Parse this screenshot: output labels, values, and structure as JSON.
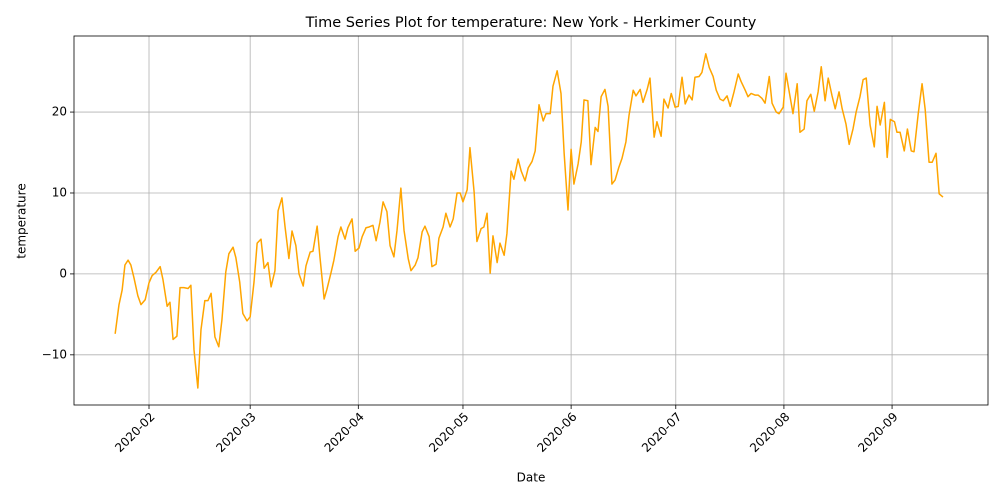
{
  "chart_data": {
    "type": "line",
    "title": "Time Series Plot for temperature: New York - Herkimer County",
    "xlabel": "Date",
    "ylabel": "temperature",
    "color": "#ffa500",
    "grid": true,
    "xlim": [
      -21.5,
      240.5
    ],
    "ylim": [
      -16.2,
      29.4
    ],
    "xticks": [
      {
        "value": 0,
        "label": "2020-02"
      },
      {
        "value": 29,
        "label": "2020-03"
      },
      {
        "value": 60,
        "label": "2020-04"
      },
      {
        "value": 90,
        "label": "2020-05"
      },
      {
        "value": 121,
        "label": "2020-06"
      },
      {
        "value": 151,
        "label": "2020-07"
      },
      {
        "value": 182,
        "label": "2020-08"
      },
      {
        "value": 213,
        "label": "2020-09"
      }
    ],
    "yticks": [
      {
        "value": -10,
        "label": "−10"
      },
      0,
      10,
      20
    ],
    "x": [
      -9.7,
      -8.6,
      -7.7,
      -6.9,
      -6,
      -5.2,
      -4.3,
      -3.2,
      -2.3,
      -1.1,
      0,
      0.9,
      2,
      3.2,
      4,
      5.2,
      6,
      6.9,
      8,
      8.9,
      10,
      11.2,
      12,
      12.9,
      14,
      14.9,
      16,
      16.9,
      17.8,
      18.9,
      20,
      20.9,
      22,
      22.9,
      24.1,
      24.9,
      26,
      26.9,
      28.1,
      29,
      30.1,
      31,
      32.1,
      33,
      34.1,
      35,
      36.1,
      37,
      38.1,
      39,
      40.1,
      41,
      42.1,
      43,
      44.2,
      45,
      46.2,
      47,
      48.2,
      49,
      50.2,
      51,
      52.2,
      53,
      54.2,
      55,
      56.2,
      57,
      58.2,
      59.1,
      60.2,
      61.1,
      62.2,
      63.1,
      64.2,
      65.1,
      66.2,
      67.1,
      68.2,
      69.1,
      70.2,
      71.1,
      72.2,
      73.1,
      74.3,
      75.1,
      76.3,
      77.1,
      78.3,
      79.1,
      80.3,
      81.1,
      82.3,
      83.1,
      84.3,
      85.1,
      86.3,
      87.2,
      88.3,
      89.2,
      90,
      91.2,
      92,
      93.2,
      94,
      95.2,
      96,
      96.9,
      97.8,
      98.6,
      99.8,
      100.6,
      101.8,
      102.6,
      103.8,
      104.6,
      105.8,
      106.7,
      107.8,
      108.7,
      109.8,
      110.7,
      111.8,
      113,
      113.8,
      115,
      115.8,
      117,
      118.1,
      119,
      120.1,
      121,
      121.8,
      123,
      123.9,
      124.7,
      125.8,
      126.7,
      127.9,
      128.7,
      129.6,
      130.7,
      131.6,
      132.7,
      133.6,
      134.7,
      135.6,
      136.7,
      137.6,
      138.8,
      139.6,
      140.8,
      141.6,
      142.8,
      143.6,
      144.8,
      145.6,
      146.8,
      147.6,
      148.8,
      149.7,
      150.8,
      151.7,
      152.8,
      153.7,
      154.8,
      155.7,
      156.5,
      157.7,
      158.5,
      159.6,
      160.6,
      161.7,
      162.6,
      163.7,
      164.6,
      165.7,
      166.6,
      167.7,
      168.9,
      169.7,
      170.9,
      171.7,
      172.6,
      173.7,
      174.6,
      175.7,
      176.6,
      177.8,
      178.6,
      179.8,
      180.6,
      181.8,
      182.6,
      183.8,
      184.6,
      185.8,
      186.6,
      187.8,
      188.6,
      189.7,
      190.7,
      191.8,
      192.7,
      193.8,
      194.7,
      195.8,
      196.7,
      197.8,
      198.7,
      199.8,
      200.7,
      201.8,
      202.7,
      203.8,
      204.7,
      205.6,
      206.7,
      207.9,
      208.7,
      209.6,
      210.8,
      211.6,
      212.5,
      213.7,
      214.4,
      215.3,
      216.5,
      217.4,
      218.5,
      219.3,
      220.5,
      221.6,
      222.5,
      223.6,
      224.5,
      225.6,
      226.5,
      227.6
    ],
    "values": [
      -7.4,
      -3.8,
      -2,
      1.1,
      1.7,
      1.1,
      -0.5,
      -2.7,
      -3.8,
      -3.2,
      -1.1,
      -0.2,
      0.2,
      0.9,
      -0.7,
      -4,
      -3.5,
      -8.1,
      -7.7,
      -1.7,
      -1.7,
      -1.8,
      -1.4,
      -9.4,
      -14.1,
      -6.9,
      -3.3,
      -3.3,
      -2.4,
      -7.8,
      -9,
      -5.7,
      0.2,
      2.5,
      3.3,
      2,
      -1,
      -4.9,
      -5.8,
      -5.3,
      -1,
      3.8,
      4.3,
      0.7,
      1.4,
      -1.6,
      0.4,
      7.8,
      9.4,
      5.8,
      1.9,
      5.3,
      3.5,
      0,
      -1.5,
      1,
      2.7,
      2.8,
      5.9,
      2.1,
      -3.1,
      -1.9,
      0.2,
      1.7,
      4.6,
      5.8,
      4.3,
      5.7,
      6.8,
      2.8,
      3.2,
      4.6,
      5.7,
      5.8,
      6,
      4.1,
      6.4,
      8.9,
      7.7,
      3.5,
      2.1,
      5.4,
      10.6,
      5.4,
      1.9,
      0.4,
      1.1,
      2,
      5.2,
      5.9,
      4.6,
      0.9,
      1.2,
      4.4,
      5.8,
      7.5,
      5.8,
      6.8,
      10,
      10,
      8.9,
      10.4,
      15.6,
      10.1,
      4,
      5.6,
      5.8,
      7.5,
      0.1,
      4.7,
      1.4,
      3.8,
      2.3,
      5,
      12.7,
      11.7,
      14.2,
      12.7,
      11.5,
      13.1,
      13.9,
      15.2,
      20.9,
      18.9,
      19.8,
      19.8,
      23.2,
      25.1,
      22.3,
      14.9,
      7.9,
      15.4,
      11.1,
      13.6,
      16.3,
      21.5,
      21.4,
      13.5,
      18.1,
      17.6,
      21.9,
      22.8,
      20.7,
      11.1,
      11.6,
      13.2,
      14.3,
      16.3,
      19.6,
      22.7,
      22,
      22.8,
      21.2,
      22.8,
      24.2,
      16.9,
      18.8,
      17,
      21.6,
      20.5,
      22.3,
      20.6,
      20.7,
      24.3,
      21,
      22.1,
      21.5,
      24.3,
      24.4,
      24.9,
      27.2,
      25.5,
      24.4,
      22.7,
      21.6,
      21.4,
      22,
      20.7,
      22.5,
      24.7,
      23.8,
      22.7,
      21.9,
      22.3,
      22.1,
      22.1,
      21.7,
      21.1,
      24.4,
      21.1,
      20,
      19.8,
      20.6,
      24.8,
      21.8,
      19.8,
      23.5,
      17.5,
      17.9,
      21.4,
      22.2,
      20.1,
      22.5,
      25.6,
      21.4,
      24.2,
      22,
      20.4,
      22.5,
      20.4,
      18.5,
      16,
      17.9,
      20,
      21.9,
      24,
      24.2,
      18.4,
      15.7,
      20.7,
      18.4,
      21.2,
      14.4,
      19.1,
      18.8,
      17.5,
      17.5,
      15.2,
      17.9,
      15.2,
      15.1,
      19.8,
      23.5,
      20.3,
      13.8,
      13.8,
      14.9,
      9.9,
      9.5
    ]
  }
}
